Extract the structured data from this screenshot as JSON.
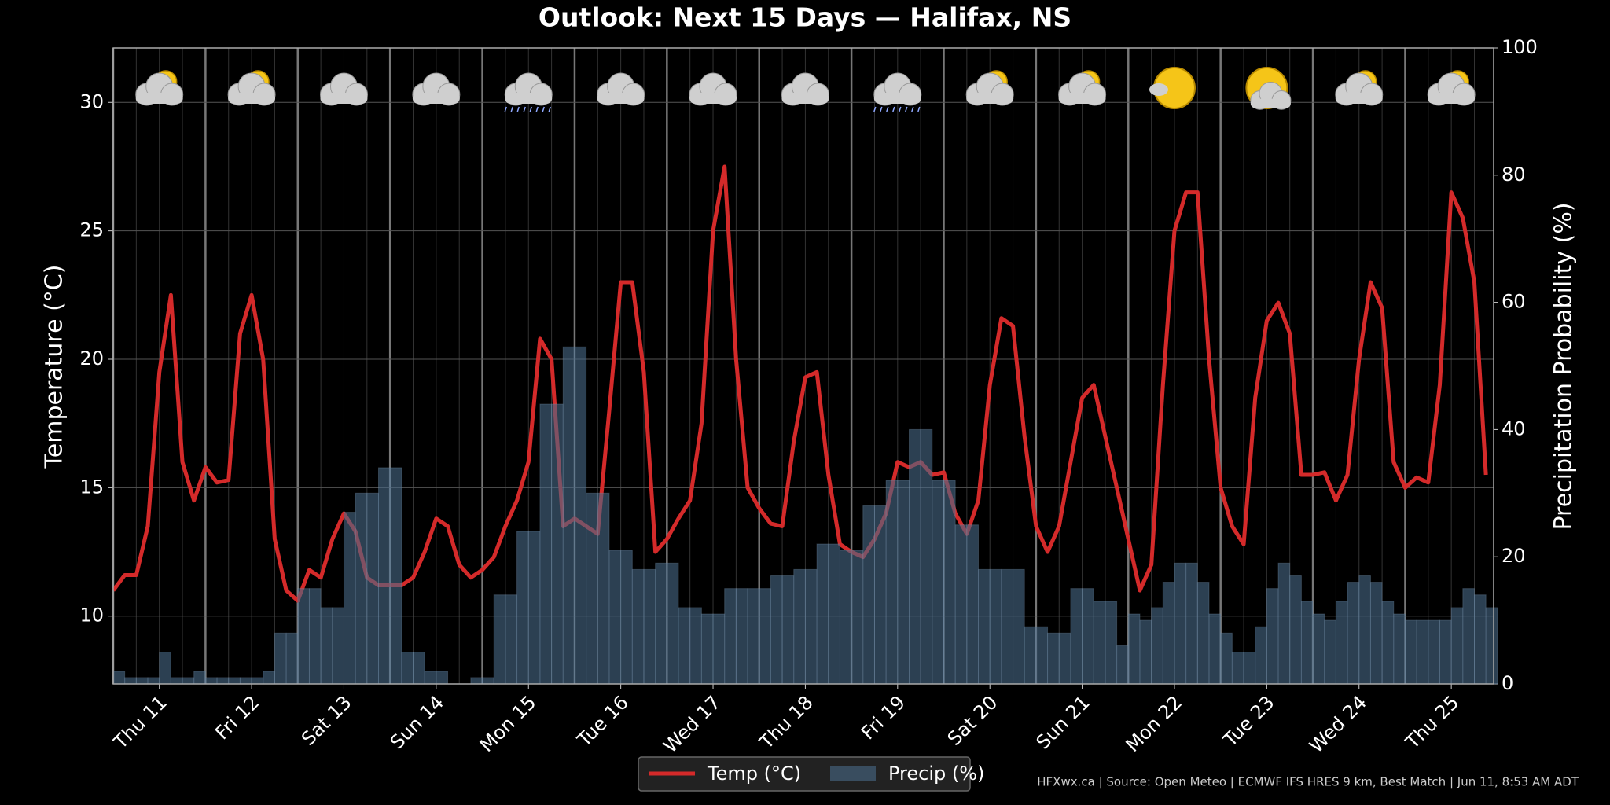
{
  "chart_data": {
    "type": "combo",
    "title": "Outlook: Next 15 Days — Halifax, NS",
    "ylabel": "Temperature (°C)",
    "y2label": "Precipitation Probability (%)",
    "footer": "HFXwx.ca | Source: Open Meteo | ECMWF IFS HRES 9 km, Best Match | Jun 11, 8:53 AM ADT",
    "categories": [
      null,
      null,
      null,
      null,
      "Thu 11",
      null,
      null,
      null,
      null,
      null,
      null,
      null,
      "Fri 12",
      null,
      null,
      null,
      null,
      null,
      null,
      null,
      "Sat 13",
      null,
      null,
      null,
      null,
      null,
      null,
      null,
      "Sun 14",
      null,
      null,
      null,
      null,
      null,
      null,
      null,
      "Mon 15",
      null,
      null,
      null,
      null,
      null,
      null,
      null,
      "Tue 16",
      null,
      null,
      null,
      null,
      null,
      null,
      null,
      "Wed 17",
      null,
      null,
      null,
      null,
      null,
      null,
      null,
      "Thu 18",
      null,
      null,
      null,
      null,
      null,
      null,
      null,
      "Fri 19",
      null,
      null,
      null,
      null,
      null,
      null,
      null,
      "Sat 20",
      null,
      null,
      null,
      null,
      null,
      null,
      null,
      "Sun 21",
      null,
      null,
      null,
      null,
      null,
      null,
      null,
      "Mon 22",
      null,
      null,
      null,
      null,
      null,
      null,
      null,
      "Tue 23",
      null,
      null,
      null,
      null,
      null,
      null,
      null,
      "Wed 24",
      null,
      null,
      null,
      null,
      null,
      null,
      null,
      "Thu 25",
      null,
      null,
      null
    ],
    "series": [
      {
        "name": "Temp (°C)",
        "type": "line",
        "axis": "y",
        "color": "#d42a2a",
        "values": [
          11,
          11.6,
          11.6,
          13.5,
          19.5,
          22.5,
          16,
          14.5,
          15.8,
          15.2,
          15.3,
          21,
          22.5,
          20,
          13,
          11,
          10.6,
          11.8,
          11.5,
          13,
          14,
          13.3,
          11.5,
          11.2,
          11.2,
          11.2,
          11.5,
          12.5,
          13.8,
          13.5,
          12,
          11.5,
          11.8,
          12.3,
          13.5,
          14.5,
          16,
          20.8,
          20,
          13.5,
          13.8,
          13.5,
          13.2,
          18,
          23,
          23,
          19.5,
          12.5,
          13,
          13.8,
          14.5,
          17.5,
          25,
          27.5,
          20,
          15,
          14.2,
          13.6,
          13.5,
          16.8,
          19.3,
          19.5,
          15.5,
          12.8,
          12.5,
          12.3,
          13,
          14,
          16,
          15.8,
          16,
          15.5,
          15.6,
          14,
          13.2,
          14.5,
          19,
          21.6,
          21.3,
          17,
          13.5,
          12.5,
          13.5,
          16,
          18.5,
          19,
          17,
          15,
          13,
          11,
          12,
          19,
          25,
          26.5,
          26.5,
          20,
          15,
          13.5,
          12.8,
          18.5,
          21.5,
          22.2,
          21,
          15.5,
          15.5,
          15.6,
          14.5,
          15.5,
          20,
          23,
          22,
          16,
          15,
          15.4,
          15.2,
          19,
          26.5,
          25.5,
          23,
          15.5
        ]
      },
      {
        "name": "Precip (%)",
        "type": "bar",
        "axis": "y2",
        "color": "#4a6a88",
        "values": [
          2,
          1,
          1,
          1,
          5,
          1,
          1,
          2,
          1,
          1,
          1,
          1,
          1,
          2,
          8,
          8,
          15,
          15,
          12,
          12,
          27,
          30,
          30,
          34,
          34,
          5,
          5,
          2,
          2,
          0,
          0,
          1,
          1,
          14,
          14,
          24,
          24,
          44,
          44,
          53,
          53,
          30,
          30,
          21,
          21,
          18,
          18,
          19,
          19,
          12,
          12,
          11,
          11,
          15,
          15,
          15,
          15,
          17,
          17,
          18,
          18,
          22,
          22,
          21,
          21,
          28,
          28,
          32,
          32,
          40,
          40,
          32,
          32,
          25,
          25,
          18,
          18,
          18,
          18,
          9,
          9,
          8,
          8,
          15,
          15,
          13,
          13,
          6,
          11,
          10,
          12,
          16,
          19,
          19,
          16,
          11,
          8,
          5,
          5,
          9,
          15,
          19,
          17,
          13,
          11,
          10,
          13,
          16,
          17,
          16,
          13,
          11,
          10,
          10,
          10,
          10,
          12,
          15,
          14,
          12
        ]
      }
    ],
    "ylim": [
      7.36,
      32.12
    ],
    "yticks": [
      10,
      15,
      20,
      25,
      30
    ],
    "y2lim": [
      0,
      100
    ],
    "y2ticks": [
      0,
      20,
      40,
      60,
      80,
      100
    ],
    "grid": true,
    "legend": "bottom"
  }
}
